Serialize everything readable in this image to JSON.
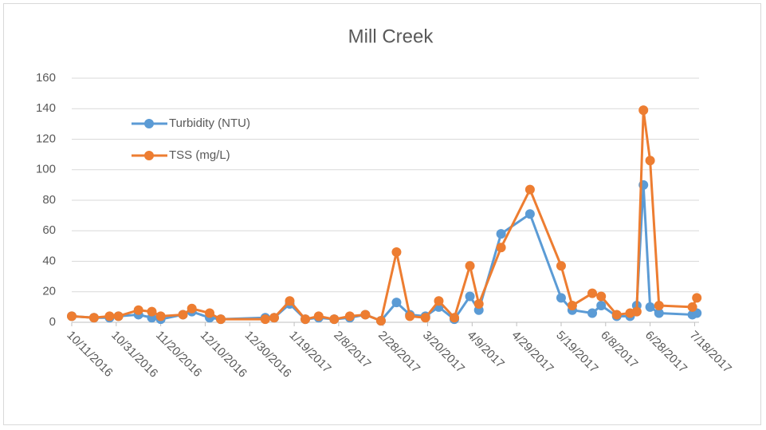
{
  "chart_data": {
    "type": "line",
    "title": "Mill Creek",
    "x": [
      "10/11/2016",
      "10/21/2016",
      "10/28/2016",
      "11/1/2016",
      "11/10/2016",
      "11/16/2016",
      "11/20/2016",
      "11/30/2016",
      "12/4/2016",
      "12/12/2016",
      "12/17/2016",
      "1/6/2017",
      "1/10/2017",
      "1/17/2017",
      "1/24/2017",
      "1/30/2017",
      "2/6/2017",
      "2/13/2017",
      "2/20/2017",
      "2/27/2017",
      "3/6/2017",
      "3/12/2017",
      "3/19/2017",
      "3/25/2017",
      "4/1/2017",
      "4/8/2017",
      "4/12/2017",
      "4/22/2017",
      "5/5/2017",
      "5/19/2017",
      "5/24/2017",
      "6/2/2017",
      "6/6/2017",
      "6/13/2017",
      "6/19/2017",
      "6/22/2017",
      "6/25/2017",
      "6/28/2017",
      "7/2/2017",
      "7/17/2017",
      "7/19/2017"
    ],
    "series": [
      {
        "name": "Turbidity (NTU)",
        "color": "#5b9bd5",
        "values": [
          4,
          3,
          3,
          4,
          5,
          3,
          2,
          5,
          7,
          3,
          2,
          3,
          3,
          12,
          2,
          3,
          2,
          3,
          5,
          1,
          13,
          5,
          4,
          10,
          2,
          17,
          8,
          58,
          71,
          16,
          8,
          6,
          11,
          4,
          4,
          11,
          90,
          10,
          6,
          5,
          6
        ]
      },
      {
        "name": "TSS (mg/L)",
        "color": "#ed7d31",
        "values": [
          4,
          3,
          4,
          4,
          8,
          7,
          4,
          5,
          9,
          6,
          2,
          2,
          3,
          14,
          2,
          4,
          2,
          4,
          5,
          1,
          46,
          4,
          3,
          14,
          3,
          37,
          12,
          49,
          87,
          37,
          11,
          19,
          17,
          5,
          6,
          7,
          139,
          106,
          11,
          10,
          16
        ]
      }
    ],
    "xlim": [
      "10/11/2016",
      "7/20/2017"
    ],
    "xticks": [
      "10/11/2016",
      "10/31/2016",
      "11/20/2016",
      "12/10/2016",
      "12/30/2016",
      "1/19/2017",
      "2/8/2017",
      "2/28/2017",
      "3/20/2017",
      "4/9/2017",
      "4/29/2017",
      "5/19/2017",
      "6/8/2017",
      "6/28/2017",
      "7/18/2017"
    ],
    "ylim": [
      0,
      160
    ],
    "yticks": [
      0,
      20,
      40,
      60,
      80,
      100,
      120,
      140,
      160
    ],
    "grid": true
  }
}
